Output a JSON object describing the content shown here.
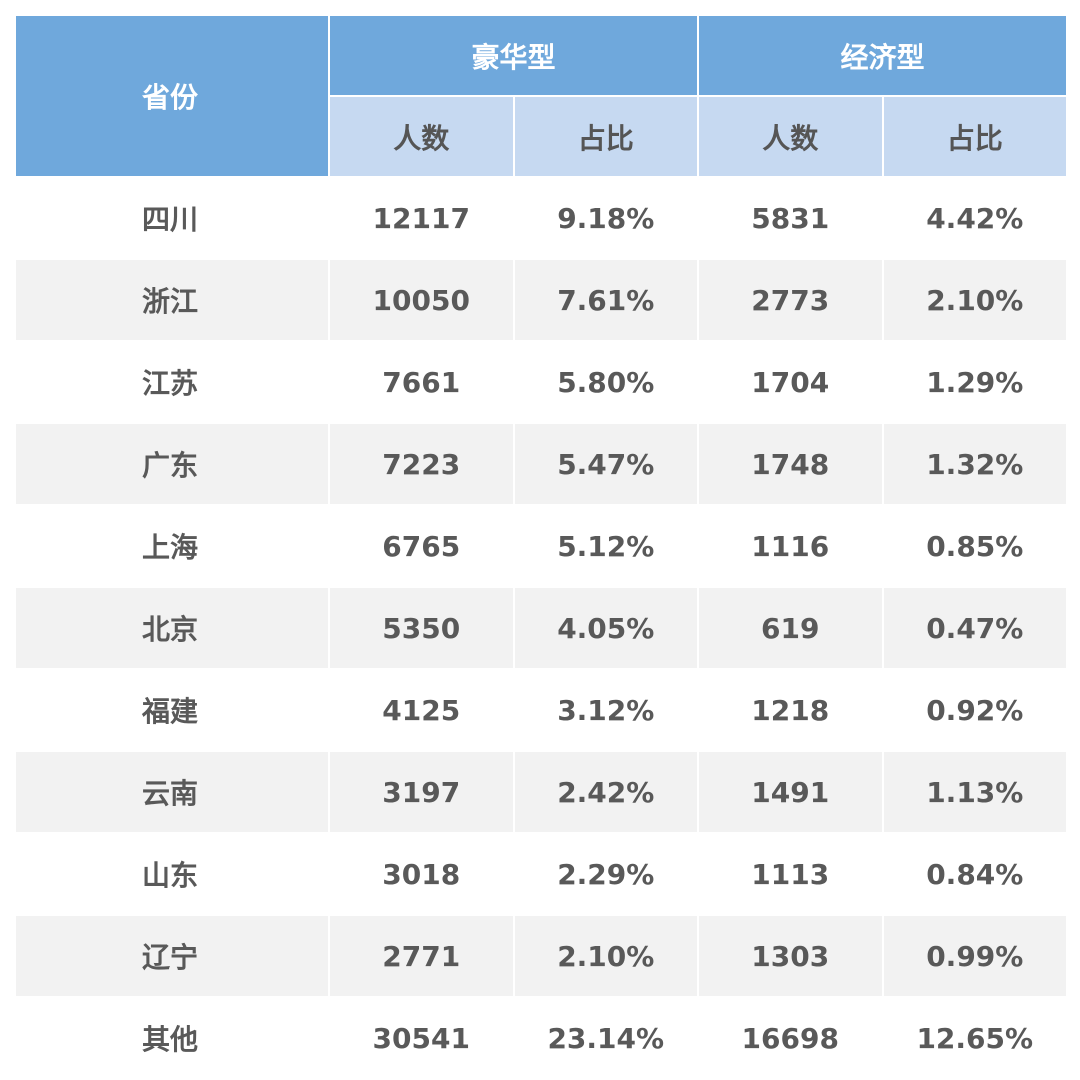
{
  "table": {
    "header": {
      "province": "省份",
      "luxury": "豪华型",
      "economy": "经济型",
      "count": "人数",
      "ratio": "占比"
    },
    "rows": [
      {
        "province": "四川",
        "lux_count": "12117",
        "lux_ratio": "9.18%",
        "eco_count": "5831",
        "eco_ratio": "4.42%"
      },
      {
        "province": "浙江",
        "lux_count": "10050",
        "lux_ratio": "7.61%",
        "eco_count": "2773",
        "eco_ratio": "2.10%"
      },
      {
        "province": "江苏",
        "lux_count": "7661",
        "lux_ratio": "5.80%",
        "eco_count": "1704",
        "eco_ratio": "1.29%"
      },
      {
        "province": "广东",
        "lux_count": "7223",
        "lux_ratio": "5.47%",
        "eco_count": "1748",
        "eco_ratio": "1.32%"
      },
      {
        "province": "上海",
        "lux_count": "6765",
        "lux_ratio": "5.12%",
        "eco_count": "1116",
        "eco_ratio": "0.85%"
      },
      {
        "province": "北京",
        "lux_count": "5350",
        "lux_ratio": "4.05%",
        "eco_count": "619",
        "eco_ratio": "0.47%"
      },
      {
        "province": "福建",
        "lux_count": "4125",
        "lux_ratio": "3.12%",
        "eco_count": "1218",
        "eco_ratio": "0.92%"
      },
      {
        "province": "云南",
        "lux_count": "3197",
        "lux_ratio": "2.42%",
        "eco_count": "1491",
        "eco_ratio": "1.13%"
      },
      {
        "province": "山东",
        "lux_count": "3018",
        "lux_ratio": "2.29%",
        "eco_count": "1113",
        "eco_ratio": "0.84%"
      },
      {
        "province": "辽宁",
        "lux_count": "2771",
        "lux_ratio": "2.10%",
        "eco_count": "1303",
        "eco_ratio": "0.99%"
      },
      {
        "province": "其他",
        "lux_count": "30541",
        "lux_ratio": "23.14%",
        "eco_count": "16698",
        "eco_ratio": "12.65%"
      }
    ]
  },
  "colors": {
    "header_main": "#6fa8dc",
    "header_sub": "#c6d9f1",
    "row_alt": "#f2f2f2",
    "text": "#595959"
  }
}
